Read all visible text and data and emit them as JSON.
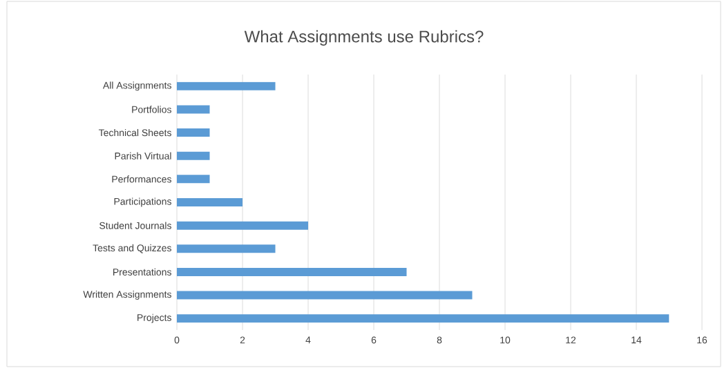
{
  "chart_data": {
    "type": "bar",
    "orientation": "horizontal",
    "title": "What Assignments use Rubrics?",
    "categories": [
      "All Assignments",
      "Portfolios",
      "Technical Sheets",
      "Parish Virtual",
      "Performances",
      "Participations",
      "Student Journals",
      "Tests and Quizzes",
      "Presentations",
      "Written Assignments",
      "Projects"
    ],
    "values": [
      3,
      1,
      1,
      1,
      1,
      2,
      4,
      3,
      7,
      9,
      15
    ],
    "color": "#5b9bd5",
    "xlim": [
      0,
      16
    ],
    "xticks": [
      0,
      2,
      4,
      6,
      8,
      10,
      12,
      14,
      16
    ],
    "grid": "x"
  }
}
